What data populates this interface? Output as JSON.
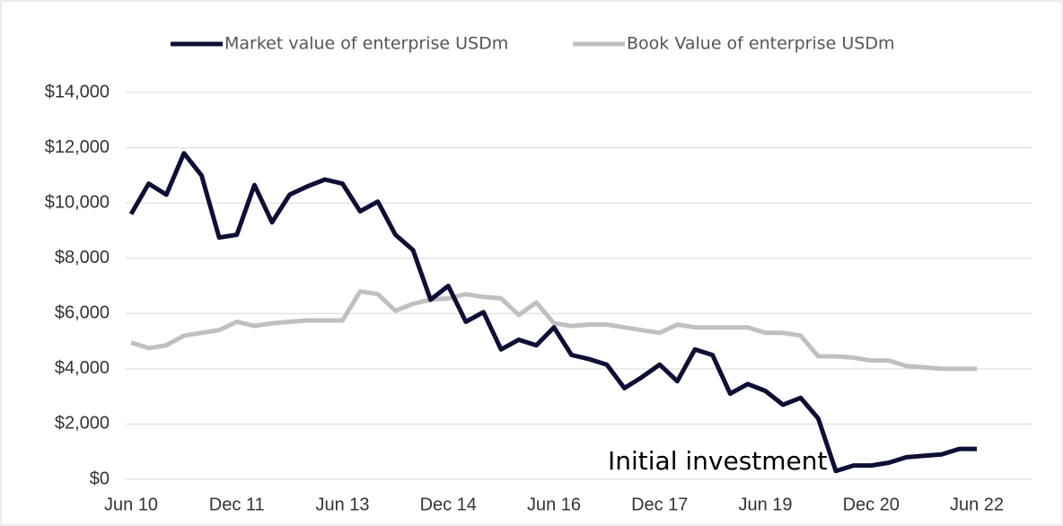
{
  "chart_data": {
    "type": "line",
    "annotation": "Initial investment",
    "categories": [
      "Jun 10",
      null,
      null,
      null,
      null,
      null,
      "Dec 11",
      null,
      null,
      null,
      null,
      null,
      "Jun 13",
      null,
      null,
      null,
      null,
      null,
      "Dec 14",
      null,
      null,
      null,
      null,
      null,
      "Jun 16",
      null,
      null,
      null,
      null,
      null,
      "Dec 17",
      null,
      null,
      null,
      null,
      null,
      "Jun 19",
      null,
      null,
      null,
      null,
      null,
      "Dec 20",
      null,
      null,
      null,
      null,
      null,
      "Jun 22"
    ],
    "series": [
      {
        "name": "Market value of enterprise USDm",
        "color": "#0d0f35",
        "values": [
          9600,
          10700,
          10300,
          11800,
          11000,
          8750,
          8850,
          10650,
          9300,
          10300,
          10600,
          10850,
          10700,
          9700,
          10050,
          8850,
          8300,
          6500,
          7000,
          5700,
          6050,
          4700,
          5050,
          4850,
          5500,
          4500,
          4350,
          4150,
          3300,
          3700,
          4150,
          3550,
          4700,
          4500,
          3100,
          3450,
          3200,
          2700,
          2950,
          2200,
          300,
          500,
          500,
          600,
          800,
          850,
          900,
          1100,
          1100
        ]
      },
      {
        "name": "Book Value of enterprise USDm",
        "color": "#c0c0c0",
        "values": [
          4950,
          4750,
          4850,
          5200,
          5300,
          5400,
          5700,
          5550,
          5650,
          5700,
          5750,
          5750,
          5750,
          6800,
          6700,
          6100,
          6350,
          6500,
          6550,
          6700,
          6600,
          6550,
          5950,
          6400,
          5650,
          5550,
          5600,
          5600,
          5500,
          5400,
          5300,
          5600,
          5500,
          5500,
          5500,
          5500,
          5300,
          5300,
          5200,
          4450,
          4450,
          4400,
          4300,
          4300,
          4100,
          4050,
          4000,
          4000,
          4000
        ]
      }
    ],
    "ylim": [
      0,
      14000
    ],
    "yticks": [
      {
        "value": 0,
        "label": "$0"
      },
      {
        "value": 2000,
        "label": "$2,000"
      },
      {
        "value": 4000,
        "label": "$4,000"
      },
      {
        "value": 6000,
        "label": "$6,000"
      },
      {
        "value": 8000,
        "label": "$8,000"
      },
      {
        "value": 10000,
        "label": "$10,000"
      },
      {
        "value": 12000,
        "label": "$12,000"
      },
      {
        "value": 14000,
        "label": "$14,000"
      }
    ],
    "grid": true,
    "legend": "top"
  }
}
